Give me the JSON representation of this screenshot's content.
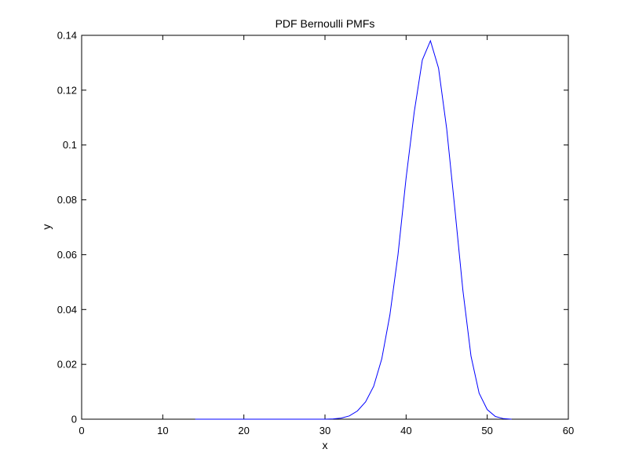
{
  "chart_data": {
    "type": "line",
    "title": "PDF Bernoulli PMFs",
    "xlabel": "x",
    "ylabel": "y",
    "xlim": [
      0,
      60
    ],
    "ylim": [
      0,
      0.14
    ],
    "xticks": [
      0,
      10,
      20,
      30,
      40,
      50,
      60
    ],
    "xtick_labels": [
      "0",
      "10",
      "20",
      "30",
      "40",
      "50",
      "60"
    ],
    "yticks": [
      0,
      0.02,
      0.04,
      0.06,
      0.08,
      0.1,
      0.12,
      0.14
    ],
    "ytick_labels": [
      "0",
      "0.02",
      "0.04",
      "0.06",
      "0.08",
      "0.1",
      "0.12",
      "0.14"
    ],
    "grid": false,
    "series": [
      {
        "color": "#0000ff",
        "x": [
          14,
          15,
          16,
          17,
          18,
          19,
          20,
          21,
          22,
          23,
          24,
          25,
          26,
          27,
          28,
          29,
          30,
          31,
          32,
          33,
          34,
          35,
          36,
          37,
          38,
          39,
          40,
          41,
          42,
          43,
          44,
          45,
          46,
          47,
          48,
          49,
          50,
          51,
          52,
          53
        ],
        "y": [
          0,
          0,
          0,
          0,
          0,
          0,
          0,
          0,
          0,
          0,
          0,
          0,
          0,
          0,
          0,
          0,
          0,
          0.0001,
          0.0004,
          0.0012,
          0.003,
          0.0063,
          0.012,
          0.022,
          0.038,
          0.06,
          0.088,
          0.112,
          0.131,
          0.138,
          0.128,
          0.106,
          0.077,
          0.047,
          0.023,
          0.0095,
          0.0035,
          0.001,
          0.0002,
          0
        ]
      }
    ]
  }
}
